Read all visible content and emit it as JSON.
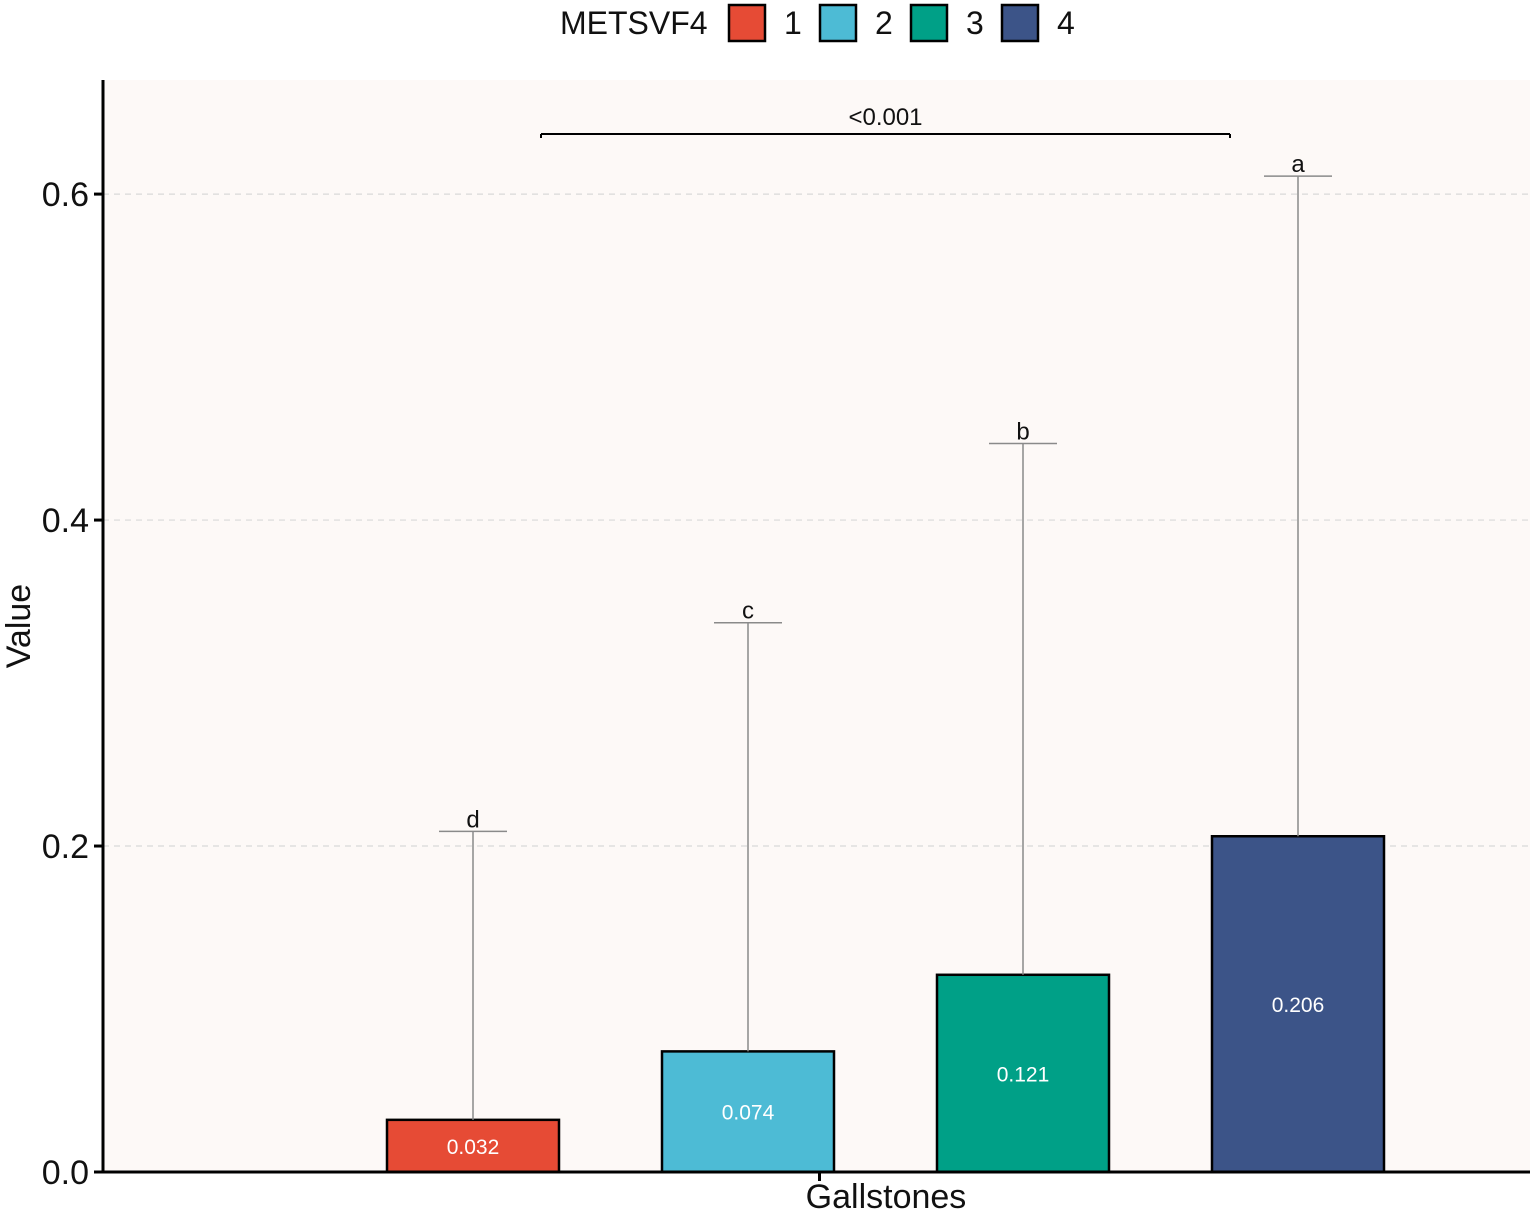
{
  "chart_data": {
    "type": "bar",
    "xlabel": "Gallstones",
    "ylabel": "Value",
    "ylim": [
      0,
      0.67
    ],
    "yticks": [
      0.0,
      0.2,
      0.4,
      0.6
    ],
    "ytick_labels": [
      "0.0",
      "0.2",
      "0.4",
      "0.6"
    ],
    "grid": "horizontal dashed",
    "legend": {
      "title": "METSVF4",
      "position": "top"
    },
    "group": "Gallstones",
    "series": [
      {
        "name": "1",
        "value": 0.032,
        "value_label": "0.032",
        "error_upper": 0.209,
        "letter": "d",
        "color": "#E64B35"
      },
      {
        "name": "2",
        "value": 0.074,
        "value_label": "0.074",
        "error_upper": 0.337,
        "letter": "c",
        "color": "#4DBBD5"
      },
      {
        "name": "3",
        "value": 0.121,
        "value_label": "0.121",
        "error_upper": 0.447,
        "letter": "b",
        "color": "#00A087"
      },
      {
        "name": "4",
        "value": 0.206,
        "value_label": "0.206",
        "error_upper": 0.611,
        "letter": "a",
        "color": "#3C5488"
      }
    ],
    "significance": {
      "label": "<0.001",
      "from_series": "1",
      "to_series": "4"
    },
    "panel_background": "#FDF9F7"
  }
}
